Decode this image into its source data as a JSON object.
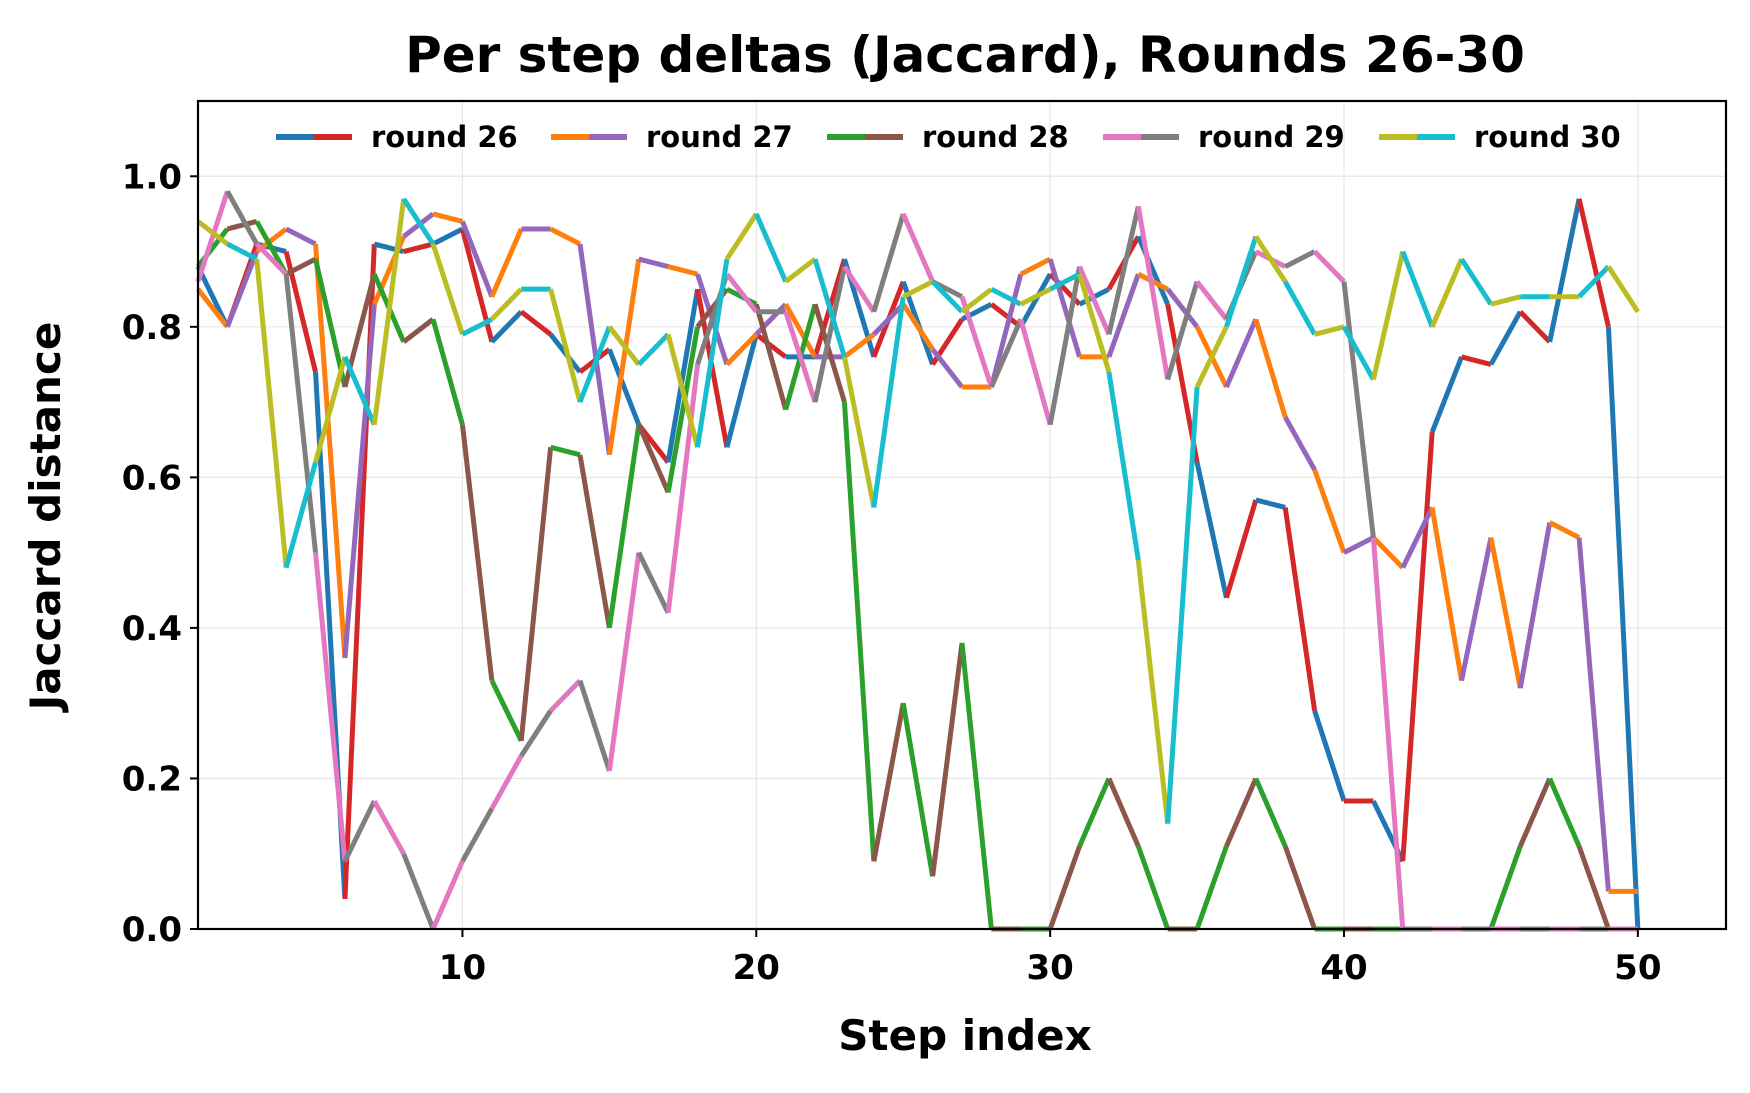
{
  "chart_data": {
    "type": "line",
    "title": "Per step deltas (Jaccard), Rounds 26-30",
    "xlabel": "Step index",
    "ylabel": "Jaccard distance",
    "xlim": [
      1,
      53
    ],
    "ylim": [
      0,
      1.1
    ],
    "xticks": [
      10,
      20,
      30,
      40,
      50
    ],
    "yticks": [
      0.0,
      0.2,
      0.4,
      0.6,
      0.8,
      1.0
    ],
    "xtick_labels": [
      "10",
      "20",
      "30",
      "40",
      "50"
    ],
    "ytick_labels": [
      "0.0",
      "0.2",
      "0.4",
      "0.6",
      "0.8",
      "1.0"
    ],
    "grid": true,
    "legend_position": "top",
    "series": [
      {
        "name": "round 26",
        "colors": [
          "#1f77b4",
          "#d62728"
        ],
        "x": [
          1,
          2,
          3,
          4,
          5,
          6,
          7,
          8,
          9,
          10,
          11,
          12,
          13,
          14,
          15,
          16,
          17,
          18,
          19,
          20,
          21,
          22,
          23,
          24,
          25,
          26,
          27,
          28,
          29,
          30,
          31,
          32,
          33,
          34,
          35,
          36,
          37,
          38,
          39,
          40,
          41,
          42,
          43,
          44,
          45,
          46,
          47,
          48,
          49,
          50
        ],
        "values": [
          0.88,
          0.8,
          0.91,
          0.9,
          0.74,
          0.04,
          0.91,
          0.9,
          0.91,
          0.93,
          0.78,
          0.82,
          0.79,
          0.74,
          0.77,
          0.67,
          0.62,
          0.85,
          0.64,
          0.79,
          0.76,
          0.76,
          0.89,
          0.76,
          0.86,
          0.75,
          0.81,
          0.83,
          0.8,
          0.87,
          0.83,
          0.85,
          0.92,
          0.83,
          0.62,
          0.44,
          0.57,
          0.56,
          0.29,
          0.17,
          0.17,
          0.09,
          0.66,
          0.76,
          0.75,
          0.82,
          0.78,
          0.97,
          0.8,
          0.0
        ]
      },
      {
        "name": "round 27",
        "colors": [
          "#ff7f0e",
          "#9467bd"
        ],
        "x": [
          1,
          2,
          3,
          4,
          5,
          6,
          7,
          8,
          9,
          10,
          11,
          12,
          13,
          14,
          15,
          16,
          17,
          18,
          19,
          20,
          21,
          22,
          23,
          24,
          25,
          26,
          27,
          28,
          29,
          30,
          31,
          32,
          33,
          34,
          35,
          36,
          37,
          38,
          39,
          40,
          41,
          42,
          43,
          44,
          45,
          46,
          47,
          48,
          49,
          50
        ],
        "values": [
          0.85,
          0.8,
          0.9,
          0.93,
          0.91,
          0.36,
          0.83,
          0.92,
          0.95,
          0.94,
          0.84,
          0.93,
          0.93,
          0.91,
          0.63,
          0.89,
          0.88,
          0.87,
          0.75,
          0.79,
          0.83,
          0.76,
          0.76,
          0.79,
          0.83,
          0.77,
          0.72,
          0.72,
          0.87,
          0.89,
          0.76,
          0.76,
          0.87,
          0.85,
          0.8,
          0.72,
          0.81,
          0.68,
          0.61,
          0.5,
          0.52,
          0.48,
          0.56,
          0.33,
          0.52,
          0.32,
          0.54,
          0.52,
          0.05,
          0.05
        ]
      },
      {
        "name": "round 28",
        "colors": [
          "#2ca02c",
          "#8c564b"
        ],
        "x": [
          1,
          2,
          3,
          4,
          5,
          6,
          7,
          8,
          9,
          10,
          11,
          12,
          13,
          14,
          15,
          16,
          17,
          18,
          19,
          20,
          21,
          22,
          23,
          24,
          25,
          26,
          27,
          28,
          29,
          30,
          31,
          32,
          33,
          34,
          35,
          36,
          37,
          38,
          39,
          40,
          41,
          42,
          43,
          44,
          45,
          46,
          47,
          48,
          49,
          50
        ],
        "values": [
          0.88,
          0.93,
          0.94,
          0.87,
          0.89,
          0.72,
          0.87,
          0.78,
          0.81,
          0.67,
          0.33,
          0.25,
          0.64,
          0.63,
          0.4,
          0.67,
          0.58,
          0.8,
          0.85,
          0.83,
          0.69,
          0.83,
          0.7,
          0.09,
          0.3,
          0.07,
          0.38,
          0.0,
          0.0,
          0.0,
          0.11,
          0.2,
          0.11,
          0.0,
          0.0,
          0.11,
          0.2,
          0.11,
          0.0,
          0.0,
          0.0,
          0.0,
          0.0,
          0.0,
          0.0,
          0.11,
          0.2,
          0.11,
          0.0,
          0.0
        ]
      },
      {
        "name": "round 29",
        "colors": [
          "#e377c2",
          "#7f7f7f"
        ],
        "x": [
          1,
          2,
          3,
          4,
          5,
          6,
          7,
          8,
          9,
          10,
          11,
          12,
          13,
          14,
          15,
          16,
          17,
          18,
          19,
          20,
          21,
          22,
          23,
          24,
          25,
          26,
          27,
          28,
          29,
          30,
          31,
          32,
          33,
          34,
          35,
          36,
          37,
          38,
          39,
          40,
          41,
          42,
          43,
          44,
          45,
          46,
          47,
          48,
          49,
          50
        ],
        "values": [
          0.86,
          0.98,
          0.91,
          0.87,
          0.5,
          0.09,
          0.17,
          0.1,
          0.0,
          0.09,
          0.16,
          0.23,
          0.29,
          0.33,
          0.21,
          0.5,
          0.42,
          0.75,
          0.87,
          0.82,
          0.82,
          0.7,
          0.88,
          0.82,
          0.95,
          0.86,
          0.84,
          0.72,
          0.81,
          0.67,
          0.88,
          0.79,
          0.96,
          0.73,
          0.86,
          0.81,
          0.9,
          0.88,
          0.9,
          0.86,
          0.52,
          0.0,
          0.0,
          0.0,
          0.0,
          0.0,
          0.0,
          0.0,
          0.0,
          0.0
        ]
      },
      {
        "name": "round 30",
        "colors": [
          "#bcbd22",
          "#17becf"
        ],
        "x": [
          1,
          2,
          3,
          4,
          5,
          6,
          7,
          8,
          9,
          10,
          11,
          12,
          13,
          14,
          15,
          16,
          17,
          18,
          19,
          20,
          21,
          22,
          23,
          24,
          25,
          26,
          27,
          28,
          29,
          30,
          31,
          32,
          33,
          34,
          35,
          36,
          37,
          38,
          39,
          40,
          41,
          42,
          43,
          44,
          45,
          46,
          47,
          48,
          49,
          50
        ],
        "values": [
          0.94,
          0.91,
          0.89,
          0.48,
          0.62,
          0.76,
          0.67,
          0.97,
          0.91,
          0.79,
          0.81,
          0.85,
          0.85,
          0.7,
          0.8,
          0.75,
          0.79,
          0.64,
          0.89,
          0.95,
          0.86,
          0.89,
          0.76,
          0.56,
          0.84,
          0.86,
          0.82,
          0.85,
          0.83,
          0.85,
          0.87,
          0.74,
          0.49,
          0.14,
          0.72,
          0.8,
          0.92,
          0.86,
          0.79,
          0.8,
          0.73,
          0.9,
          0.8,
          0.89,
          0.83,
          0.84,
          0.84,
          0.84,
          0.88,
          0.82
        ]
      }
    ]
  }
}
